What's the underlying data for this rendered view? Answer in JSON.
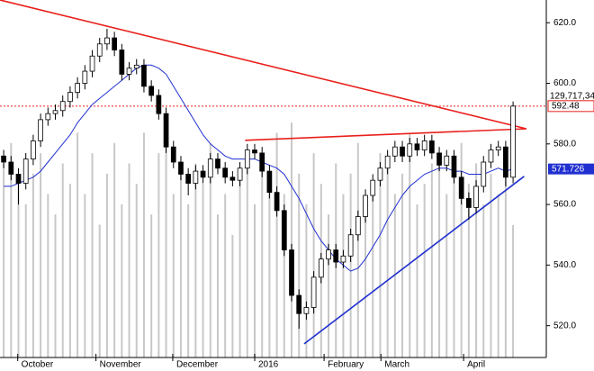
{
  "chart_data": {
    "type": "candlestick",
    "xlim": [
      -0.5,
      73.5
    ],
    "xticks": [
      {
        "value": 1.9,
        "label": "October"
      },
      {
        "value": 12.5,
        "label": "November"
      },
      {
        "value": 22.9,
        "label": "December"
      },
      {
        "value": 34,
        "label": "2016"
      },
      {
        "value": 43.4,
        "label": "February"
      },
      {
        "value": 51.1,
        "label": "March"
      },
      {
        "value": 62.3,
        "label": "April"
      }
    ],
    "ylim": [
      509.5,
      627.5
    ],
    "yticks": [
      {
        "value": 520,
        "label": "520.0"
      },
      {
        "value": 540,
        "label": "540.0"
      },
      {
        "value": 560,
        "label": "560.0"
      },
      {
        "value": 580,
        "label": "580.0"
      },
      {
        "value": 600,
        "label": "600.0"
      },
      {
        "value": 620,
        "label": "620.0"
      }
    ],
    "up_color": "#ffffff",
    "down_color": "#000000",
    "open": [
      576,
      574,
      570,
      567,
      575,
      581,
      588,
      590,
      591,
      594,
      597,
      600,
      604,
      609,
      613,
      615,
      611,
      603,
      605,
      606,
      599,
      596,
      590,
      579,
      574,
      570,
      567,
      571,
      569,
      575,
      572,
      569,
      568,
      572,
      578,
      577,
      571,
      564,
      558,
      545,
      530,
      524,
      526,
      536,
      542,
      545,
      541,
      543,
      550,
      556,
      563,
      568,
      572,
      576,
      579,
      576,
      580,
      578,
      581,
      577,
      573,
      576,
      569,
      562,
      559,
      566,
      574,
      578,
      579,
      569
    ],
    "high": [
      578,
      576,
      572,
      577,
      583,
      590,
      592,
      593,
      596,
      599,
      602,
      606,
      611,
      615,
      618,
      617,
      613,
      607,
      608,
      608,
      601,
      598,
      592,
      581,
      576,
      572,
      573,
      573,
      577,
      577,
      574,
      571,
      574,
      580,
      580,
      579,
      573,
      566,
      560,
      547,
      532,
      528,
      538,
      544,
      547,
      547,
      545,
      552,
      558,
      565,
      570,
      574,
      578,
      581,
      581,
      582,
      582,
      583,
      583,
      579,
      578,
      578,
      571,
      564,
      568,
      576,
      580,
      581,
      581,
      594
    ],
    "low": [
      572,
      568,
      560,
      565,
      573,
      579,
      586,
      588,
      589,
      592,
      595,
      598,
      602,
      607,
      611,
      609,
      601,
      601,
      603,
      597,
      594,
      588,
      577,
      572,
      568,
      563,
      565,
      567,
      567,
      570,
      567,
      566,
      566,
      570,
      575,
      569,
      562,
      556,
      543,
      528,
      519,
      522,
      524,
      534,
      540,
      539,
      539,
      541,
      548,
      554,
      561,
      566,
      570,
      574,
      574,
      574,
      576,
      576,
      575,
      571,
      571,
      567,
      560,
      555,
      557,
      564,
      572,
      576,
      566,
      567
    ],
    "close": [
      574,
      570,
      567,
      575,
      581,
      588,
      590,
      591,
      594,
      597,
      600,
      604,
      609,
      613,
      615,
      611,
      603,
      605,
      606,
      599,
      596,
      590,
      579,
      574,
      570,
      567,
      571,
      569,
      575,
      572,
      569,
      568,
      572,
      578,
      577,
      571,
      564,
      558,
      545,
      530,
      524,
      526,
      536,
      542,
      545,
      541,
      543,
      550,
      556,
      563,
      568,
      572,
      576,
      579,
      576,
      580,
      578,
      581,
      577,
      573,
      576,
      569,
      562,
      559,
      566,
      574,
      578,
      579,
      569,
      592.48
    ],
    "moving_average": {
      "color": "#1f2fd0",
      "values": [
        566,
        566,
        567,
        568,
        569,
        571,
        574,
        577,
        580,
        583,
        587,
        590,
        593,
        595,
        597,
        599,
        601,
        603,
        605,
        606,
        606,
        605,
        603,
        599,
        595,
        591,
        587,
        583,
        580,
        578,
        576,
        575,
        575,
        575,
        575,
        574,
        573,
        572,
        570,
        566,
        562,
        557,
        552,
        548,
        545,
        542,
        540,
        538,
        539,
        542,
        546,
        550,
        555,
        559,
        563,
        566,
        568,
        570,
        571,
        572,
        572,
        571,
        571,
        570,
        570,
        570,
        571,
        572,
        571,
        571.726
      ]
    },
    "volume": {
      "color": "#c8c8c8",
      "vlim": [
        0,
        350000000
      ],
      "label": "129,717,34",
      "values": [
        190000000,
        210000000,
        170000000,
        150000000,
        180000000,
        200000000,
        160000000,
        140000000,
        190000000,
        170000000,
        220000000,
        160000000,
        200000000,
        130000000,
        180000000,
        210000000,
        150000000,
        190000000,
        170000000,
        220000000,
        140000000,
        200000000,
        230000000,
        160000000,
        180000000,
        150000000,
        190000000,
        170000000,
        210000000,
        140000000,
        160000000,
        120000000,
        180000000,
        200000000,
        150000000,
        190000000,
        170000000,
        220000000,
        160000000,
        230000000,
        180000000,
        150000000,
        200000000,
        170000000,
        140000000,
        190000000,
        160000000,
        180000000,
        210000000,
        150000000,
        170000000,
        200000000,
        190000000,
        160000000,
        180000000,
        220000000,
        150000000,
        170000000,
        190000000,
        200000000,
        160000000,
        180000000,
        210000000,
        170000000,
        190000000,
        150000000,
        180000000,
        160000000,
        200000000,
        129717340
      ]
    },
    "trendlines": [
      {
        "color": "#e8201c",
        "x": [
          -0.5,
          70.8
        ],
        "y": [
          627.5,
          585
        ]
      },
      {
        "color": "#e8201c",
        "x": [
          32.7,
          70.8
        ],
        "y": [
          581.2,
          585
        ]
      },
      {
        "color": "#1f2fd0",
        "x": [
          40.7,
          70.5
        ],
        "y": [
          514,
          569.3
        ]
      }
    ],
    "last_price_color": "#e8201c"
  }
}
